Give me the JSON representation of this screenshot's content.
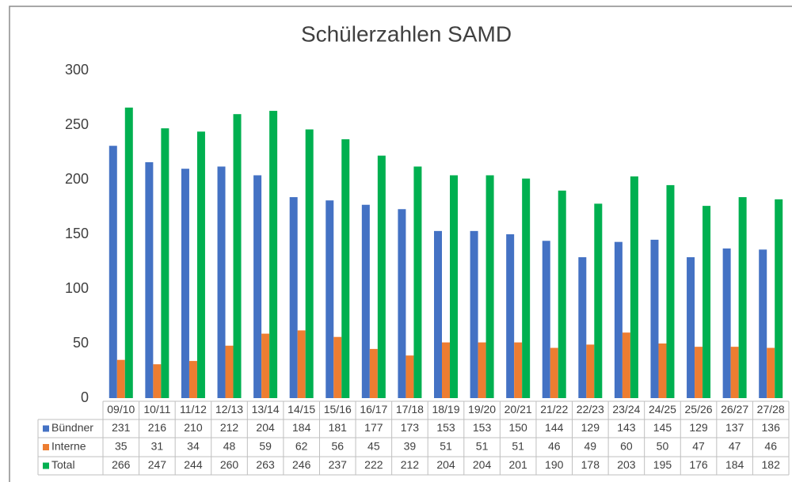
{
  "chart_data": {
    "type": "bar",
    "title": "Schülerzahlen SAMD",
    "categories": [
      "09/10",
      "10/11",
      "11/12",
      "12/13",
      "13/14",
      "14/15",
      "15/16",
      "16/17",
      "17/18",
      "18/19",
      "19/20",
      "20/21",
      "21/22",
      "22/23",
      "23/24",
      "24/25",
      "25/26",
      "26/27",
      "27/28"
    ],
    "series": [
      {
        "name": "Bündner",
        "color": "#4472c4",
        "values": [
          231,
          216,
          210,
          212,
          204,
          184,
          181,
          177,
          173,
          153,
          153,
          150,
          144,
          129,
          143,
          145,
          129,
          137,
          136
        ]
      },
      {
        "name": "Interne",
        "color": "#ed7d31",
        "values": [
          35,
          31,
          34,
          48,
          59,
          62,
          56,
          45,
          39,
          51,
          51,
          51,
          46,
          49,
          60,
          50,
          47,
          47,
          46
        ]
      },
      {
        "name": "Total",
        "color": "#00b050",
        "values": [
          266,
          247,
          244,
          260,
          263,
          246,
          237,
          222,
          212,
          204,
          204,
          201,
          190,
          178,
          203,
          195,
          176,
          184,
          182
        ]
      }
    ],
    "ylim": [
      0,
      300
    ],
    "yticks": [
      0,
      50,
      100,
      150,
      200,
      250,
      300
    ],
    "grid": false
  }
}
